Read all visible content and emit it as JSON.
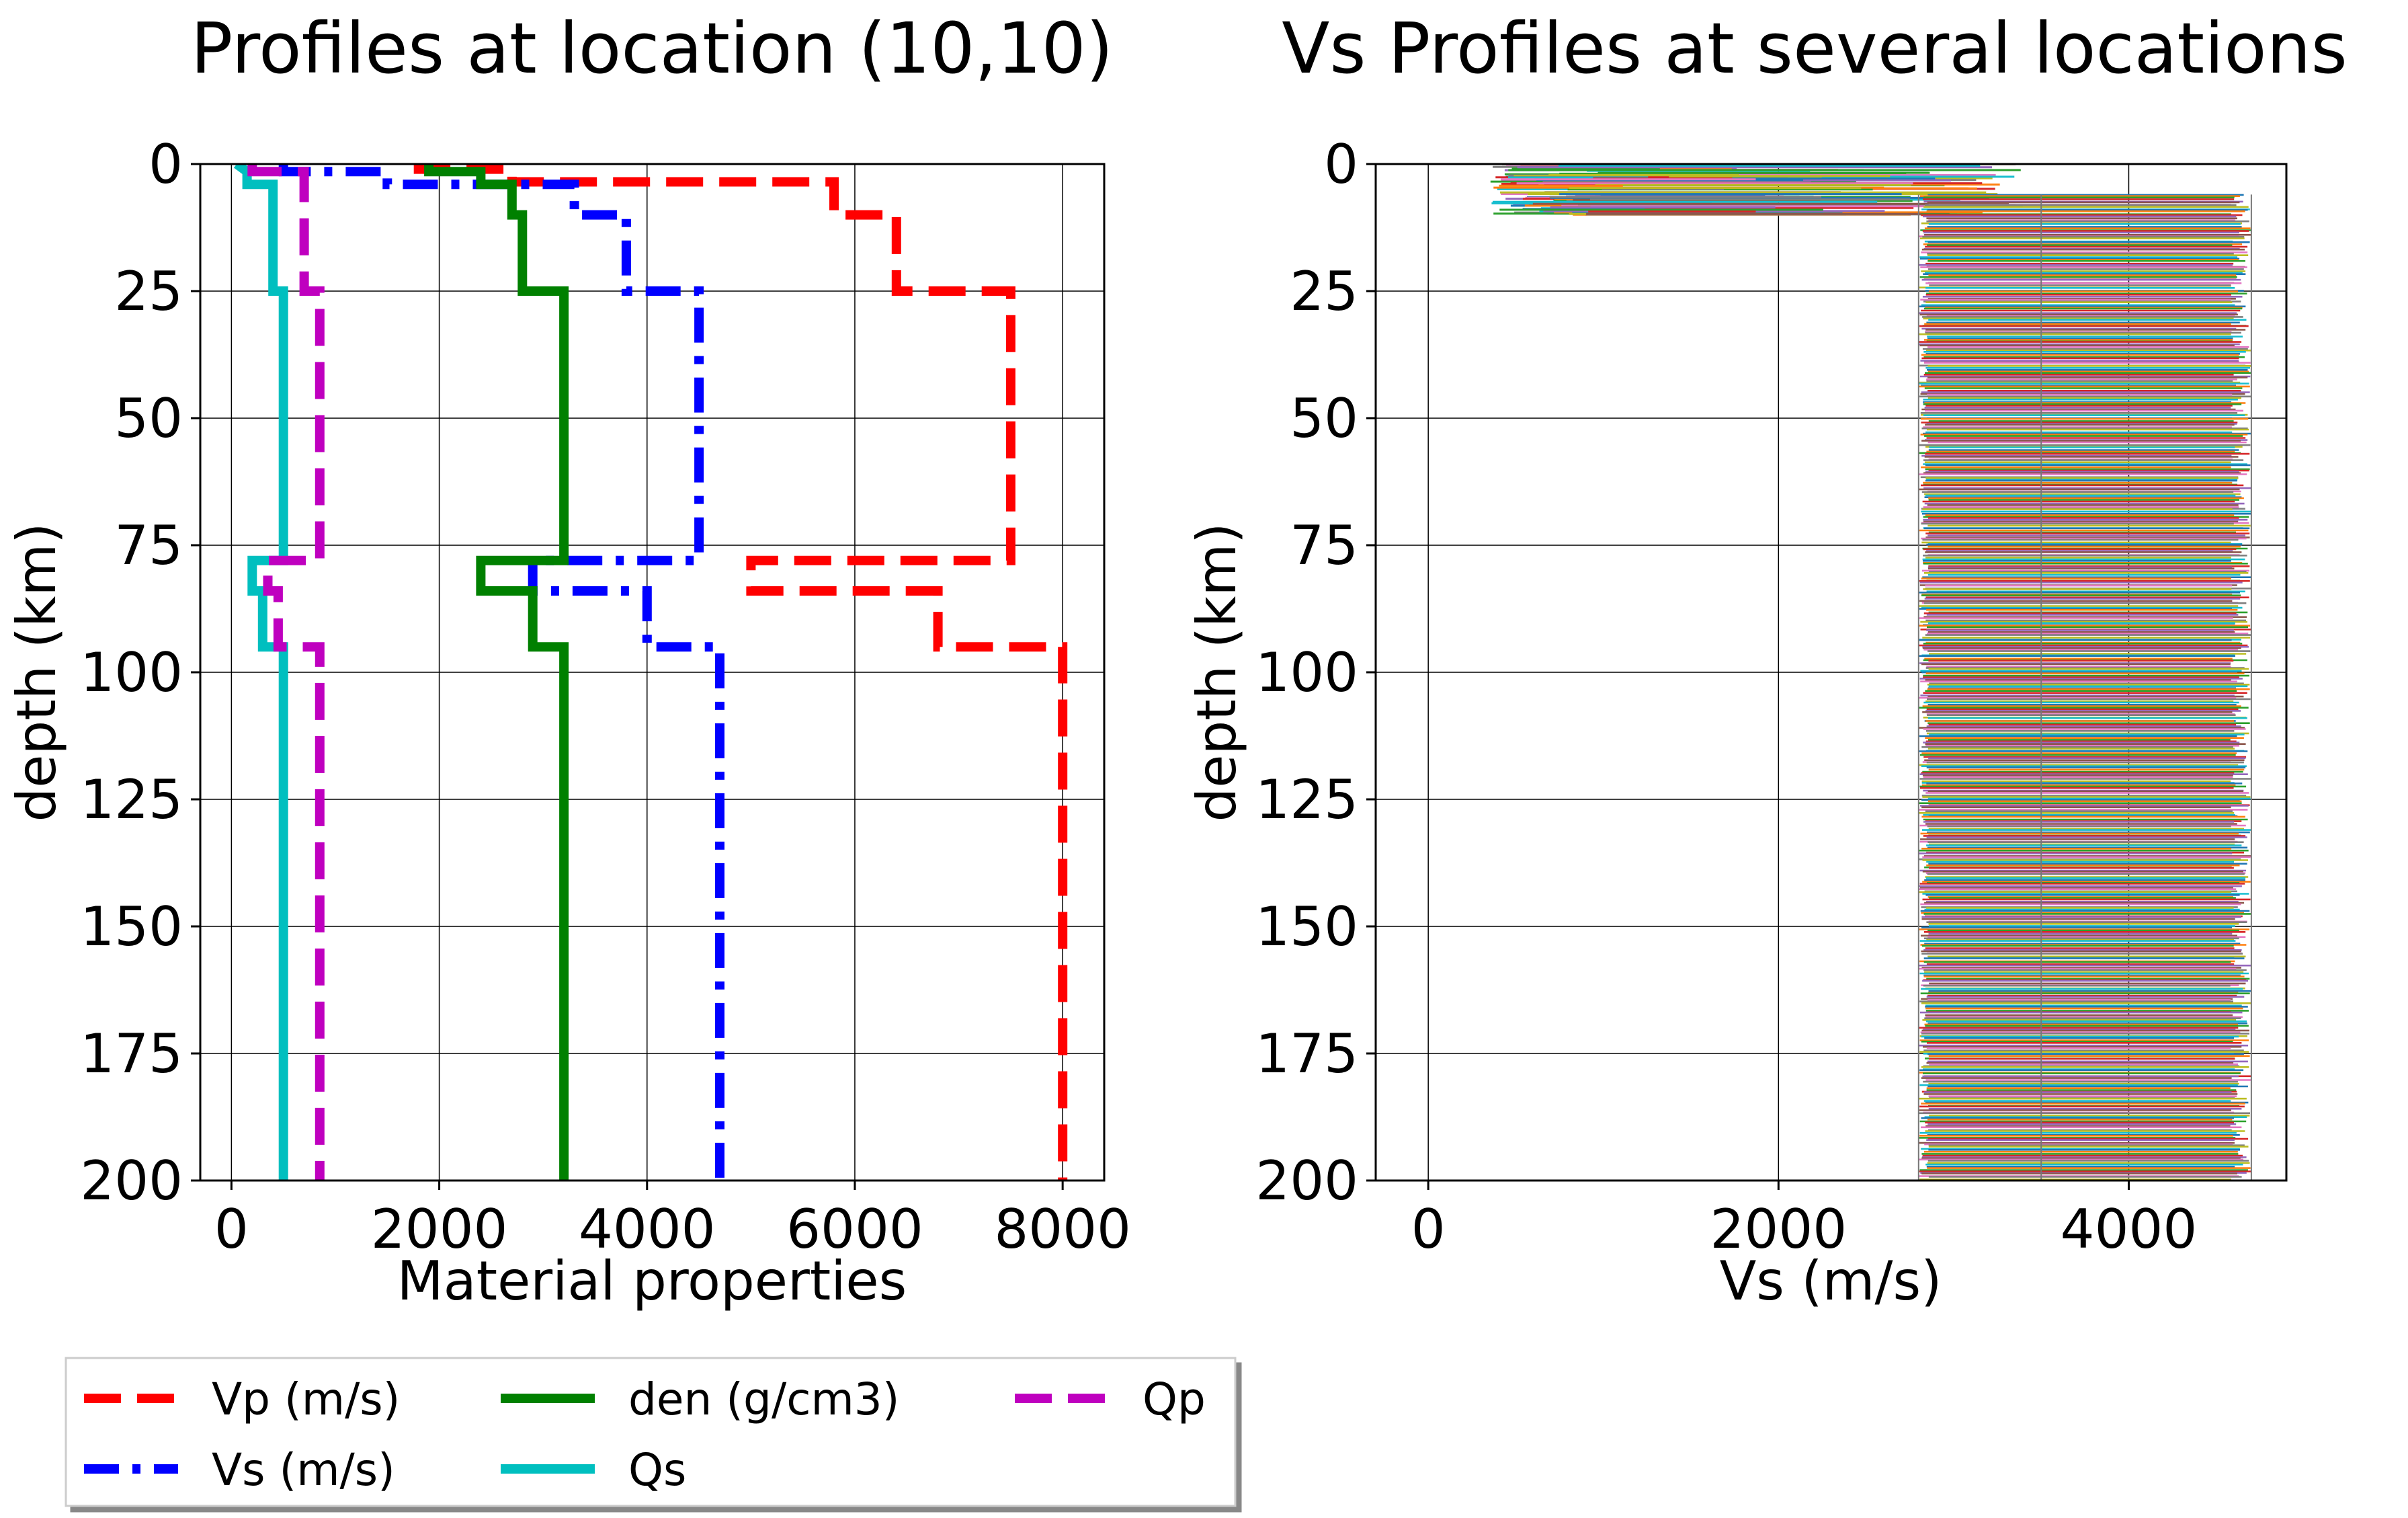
{
  "chart_data": [
    {
      "type": "line",
      "title": "Profiles at location (10,10)",
      "xlabel": "Material properties",
      "ylabel": "depth (km)",
      "xlim": [
        -300,
        8400
      ],
      "ylim": [
        200,
        0
      ],
      "y_inverted": true,
      "xticks": [
        "0",
        "2000",
        "4000",
        "6000",
        "8000"
      ],
      "yticks": [
        "0",
        "25",
        "50",
        "75",
        "100",
        "125",
        "150",
        "175",
        "200"
      ],
      "grid": true,
      "legend": {
        "placement": "below",
        "columns": 3,
        "entries": [
          "Vp (m/s)",
          "Vs (m/s)",
          "den (g/cm3)",
          "Qs",
          "Qp"
        ]
      },
      "series": [
        {
          "name": "Vp (m/s)",
          "color": "#ff0000",
          "dash": "dashed",
          "x": [
            1800,
            1800,
            2700,
            2700,
            5800,
            5800,
            5800,
            5800,
            6400,
            6400,
            7500,
            7500,
            5000,
            5000,
            6800,
            6800,
            8000,
            8000
          ],
          "y": [
            0,
            1,
            1,
            3.5,
            3.5,
            4,
            4,
            10,
            10,
            25,
            25,
            78,
            78,
            84,
            84,
            95,
            95,
            200
          ]
        },
        {
          "name": "Vs (m/s)",
          "color": "#0000ff",
          "dash": "dashdot",
          "x": [
            500,
            500,
            1500,
            1500,
            3300,
            3300,
            3800,
            3800,
            4500,
            4500,
            2900,
            2900,
            4000,
            4000,
            4700,
            4700
          ],
          "y": [
            0,
            1.5,
            1.5,
            4,
            4,
            10,
            10,
            25,
            25,
            78,
            78,
            84,
            84,
            95,
            95,
            200
          ]
        },
        {
          "name": "den (g/cm3)",
          "color": "#008000",
          "dash": "solid",
          "x": [
            1900,
            1900,
            2400,
            2400,
            2700,
            2700,
            2800,
            2800,
            3200,
            3200,
            2400,
            2400,
            2900,
            2900,
            3200,
            3200
          ],
          "y": [
            0,
            1.5,
            1.5,
            4,
            4,
            10,
            10,
            25,
            25,
            78,
            78,
            84,
            84,
            95,
            95,
            200
          ]
        },
        {
          "name": "Qs",
          "color": "#00bfbf",
          "dash": "solid",
          "x": [
            50,
            150,
            150,
            400,
            400,
            450,
            450,
            500,
            500,
            200,
            200,
            300,
            300,
            500,
            500
          ],
          "y": [
            0,
            1.5,
            4,
            4,
            25,
            25,
            25,
            25,
            78,
            78,
            84,
            84,
            95,
            95,
            200
          ]
        },
        {
          "name": "Qp",
          "color": "#bf00bf",
          "dash": "dashed",
          "x": [
            200,
            200,
            700,
            700,
            850,
            850,
            350,
            350,
            450,
            450,
            850,
            850
          ],
          "y": [
            0,
            1.5,
            1.5,
            25,
            25,
            78,
            78,
            84,
            84,
            95,
            95,
            200
          ]
        }
      ]
    },
    {
      "type": "line",
      "title": "Vs Profiles at several locations",
      "xlabel": "Vs (m/s)",
      "ylabel": "depth (km)",
      "xlim": [
        -300,
        4900
      ],
      "ylim": [
        200,
        0
      ],
      "y_inverted": true,
      "xticks": [
        "0",
        "2000",
        "4000"
      ],
      "yticks": [
        "0",
        "25",
        "50",
        "75",
        "100",
        "125",
        "150",
        "175",
        "200"
      ],
      "grid": true,
      "many_series": true,
      "profile_summary": {
        "shallow_vs_range": [
          350,
          3400
        ],
        "shallow_depth_max": 10,
        "deep_vs_range": [
          2800,
          4700
        ],
        "column_mid_vs": 3500,
        "deep_depth_from": 6
      }
    }
  ]
}
